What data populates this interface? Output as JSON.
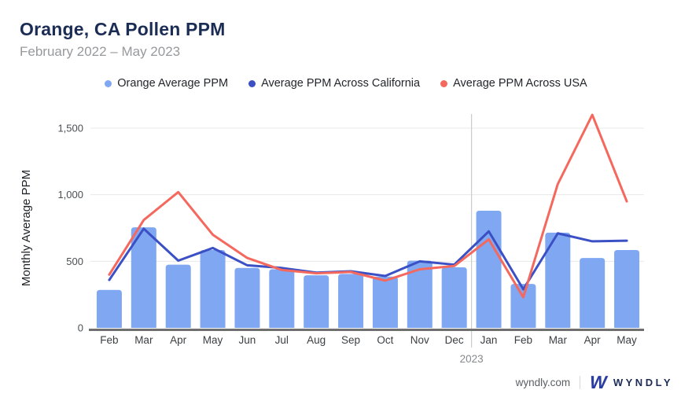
{
  "header": {
    "title": "Orange, CA Pollen PPM",
    "subtitle": "February 2022 – May 2023"
  },
  "legend": [
    {
      "label": "Orange Average PPM",
      "color": "#7FA7F2"
    },
    {
      "label": "Average PPM Across California",
      "color": "#3A50C4"
    },
    {
      "label": "Average PPM Across USA",
      "color": "#F4685E"
    }
  ],
  "chart_data": {
    "type": "bar",
    "title": "Orange, CA Pollen PPM",
    "subtitle": "February 2022 – May 2023",
    "categories": [
      "Feb",
      "Mar",
      "Apr",
      "May",
      "Jun",
      "Jul",
      "Aug",
      "Sep",
      "Oct",
      "Nov",
      "Dec",
      "Jan",
      "Feb",
      "Mar",
      "Apr",
      "May"
    ],
    "series": [
      {
        "name": "Orange Average PPM",
        "type": "bar",
        "color": "#7FA7F2",
        "values": [
          285,
          755,
          475,
          585,
          450,
          440,
          395,
          405,
          385,
          505,
          455,
          880,
          330,
          715,
          525,
          585
        ]
      },
      {
        "name": "Average PPM Across California",
        "type": "line",
        "color": "#3A50C4",
        "values": [
          360,
          745,
          505,
          600,
          470,
          450,
          415,
          425,
          390,
          500,
          475,
          725,
          290,
          710,
          650,
          655
        ]
      },
      {
        "name": "Average PPM Across USA",
        "type": "line",
        "color": "#F4685E",
        "values": [
          400,
          810,
          1020,
          700,
          525,
          435,
          410,
          420,
          355,
          440,
          465,
          665,
          230,
          1080,
          1600,
          950
        ]
      }
    ],
    "xlabel": "",
    "ylabel": "Monthly Average PPM",
    "yticks": [
      0,
      500,
      1000,
      1500
    ],
    "ytick_labels": [
      "0",
      "500",
      "1,000",
      "1,500"
    ],
    "ylim": [
      0,
      1500
    ],
    "grid": true,
    "legend_position": "top",
    "year_divider": {
      "label": "2023",
      "after_index": 10
    },
    "colors": {
      "gridline": "#E8E8E8",
      "axis_line": "#6F6F6F",
      "divider_line": "#CBCBCB",
      "tick_text": "#4B4F54",
      "month_text": "#3C4043",
      "year_text": "#85898E",
      "ylabel_text": "#1F2327"
    }
  },
  "footer": {
    "site": "wyndly.com",
    "separator": "|",
    "logo": "W",
    "brand": "WYNDLY"
  }
}
